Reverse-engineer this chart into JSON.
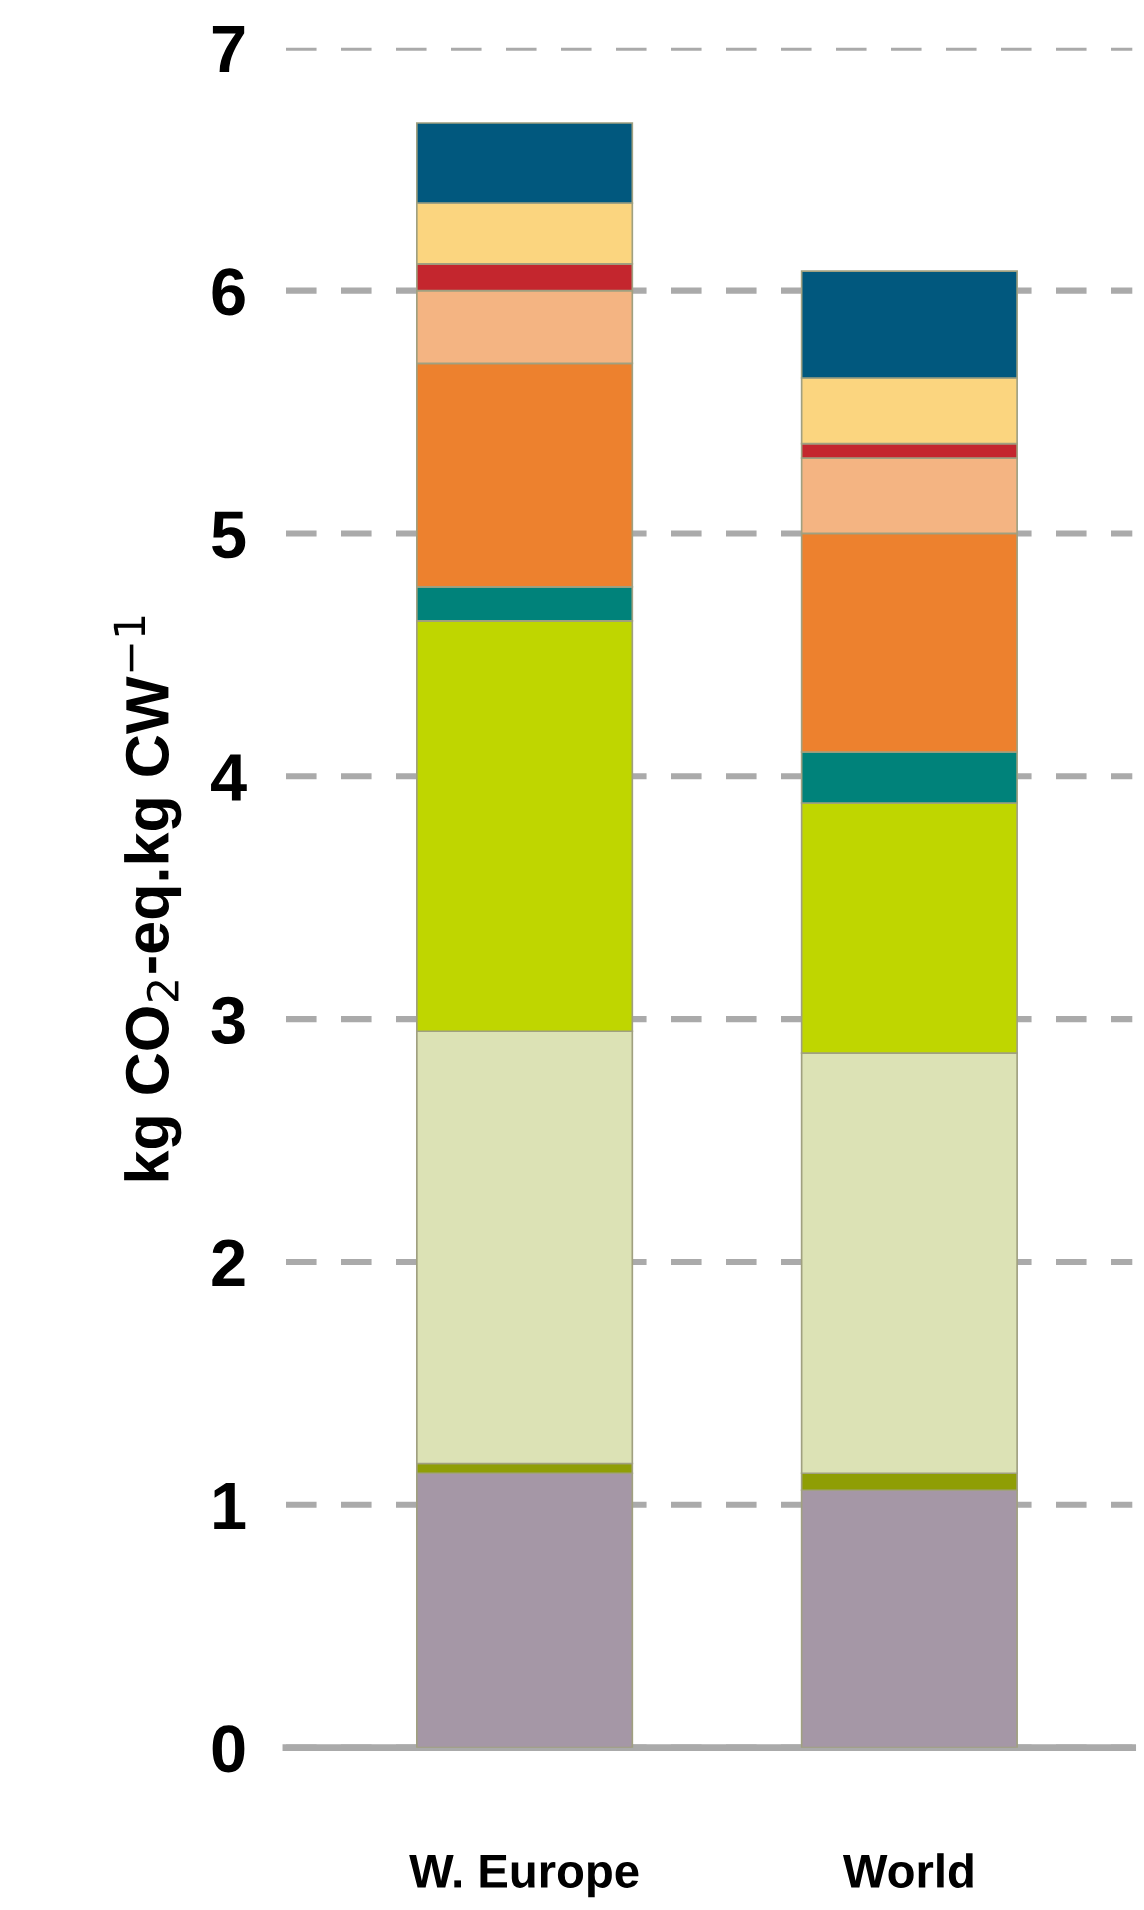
{
  "chart_data": {
    "type": "bar",
    "stacked": true,
    "ylabel": "kg CO$_{2}$-eq.kg CW$^{−1}$",
    "categories": [
      "W. Europe",
      "World"
    ],
    "series": [
      {
        "color": "#a597a6",
        "values": [
          1.13,
          1.06
        ]
      },
      {
        "color": "#8f9e05",
        "values": [
          0.04,
          0.07
        ]
      },
      {
        "color": "#dce2b5",
        "values": [
          1.78,
          1.73
        ]
      },
      {
        "color": "#bfd600",
        "values": [
          1.69,
          1.03
        ]
      },
      {
        "color": "#00827a",
        "values": [
          0.14,
          0.21
        ]
      },
      {
        "color": "#ed812e",
        "values": [
          0.92,
          0.9
        ]
      },
      {
        "color": "#f4b482",
        "values": [
          0.3,
          0.31
        ]
      },
      {
        "color": "#c4262e",
        "values": [
          0.11,
          0.06
        ]
      },
      {
        "color": "#fbd57f",
        "values": [
          0.25,
          0.27
        ]
      },
      {
        "color": "#01587e",
        "values": [
          0.33,
          0.44
        ]
      }
    ],
    "ylim": [
      0,
      7
    ],
    "yticks": [
      0,
      1,
      2,
      3,
      4,
      5,
      6,
      7
    ],
    "grid": "y"
  }
}
